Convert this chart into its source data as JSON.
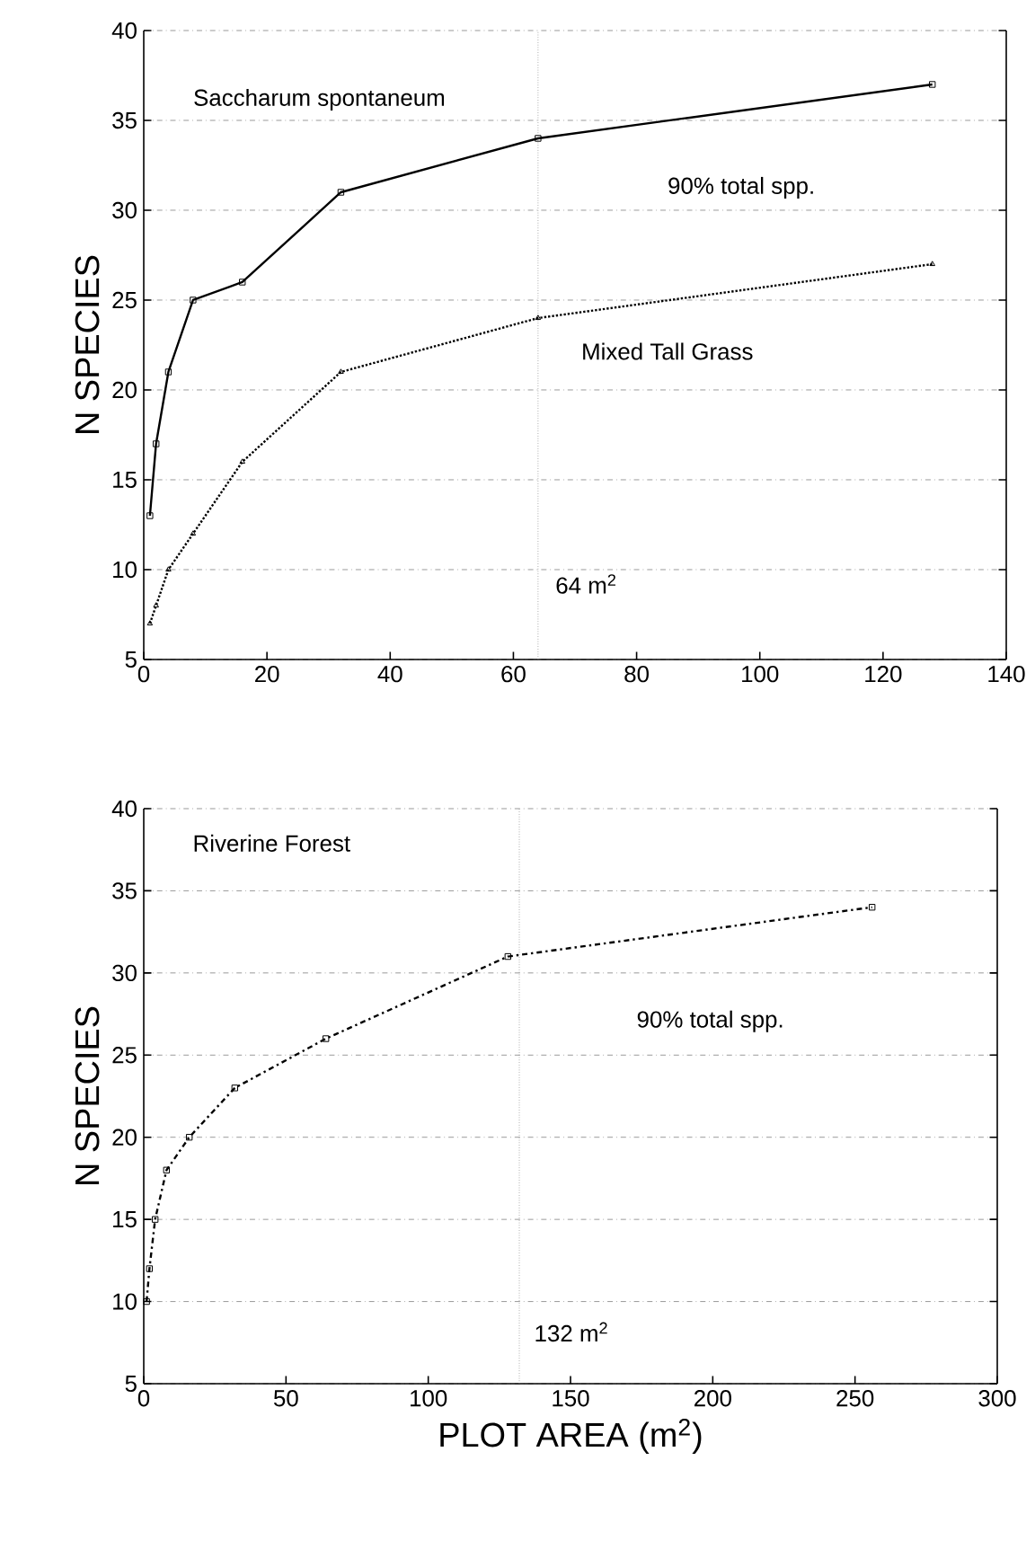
{
  "chart_data": [
    {
      "type": "line",
      "ylabel": "N SPECIES",
      "xlim": [
        0,
        140
      ],
      "xticks": [
        0,
        20,
        40,
        60,
        80,
        100,
        120,
        140
      ],
      "ylim": [
        5,
        40
      ],
      "yticks": [
        5,
        10,
        15,
        20,
        25,
        30,
        35,
        40
      ],
      "grid": "y",
      "series": [
        {
          "name": "Saccharum spontaneum",
          "color": "#000000",
          "marker": "square",
          "line_style": "solid",
          "x": [
            1,
            2,
            4,
            8,
            16,
            32,
            64,
            128
          ],
          "values": [
            13,
            17,
            21,
            25,
            26,
            31,
            34,
            37
          ]
        },
        {
          "name": "Mixed Tall Grass",
          "color": "#000000",
          "marker": "triangle",
          "line_style": "dotted",
          "x": [
            1,
            2,
            4,
            8,
            16,
            32,
            64,
            128
          ],
          "values": [
            7,
            8,
            10,
            12,
            16,
            21,
            24,
            27
          ]
        }
      ],
      "ref_lines": [
        {
          "axis": "x",
          "value": 64,
          "label": "64 m$^{2}$",
          "line_style": "dotted"
        }
      ],
      "annotations": [
        "90% total spp."
      ]
    },
    {
      "type": "line",
      "xlabel": "PLOT AREA (m$^{2}$)",
      "ylabel": "N SPECIES",
      "xlim": [
        0,
        300
      ],
      "xticks": [
        0,
        50,
        100,
        150,
        200,
        250,
        300
      ],
      "ylim": [
        5,
        40
      ],
      "yticks": [
        5,
        10,
        15,
        20,
        25,
        30,
        35,
        40
      ],
      "grid": "y",
      "series": [
        {
          "name": "Riverine Forest",
          "color": "#000000",
          "marker": "square",
          "line_style": "dashdot",
          "x": [
            1,
            2,
            4,
            8,
            16,
            32,
            64,
            128,
            256
          ],
          "values": [
            10,
            12,
            15,
            18,
            20,
            23,
            26,
            31,
            34
          ]
        }
      ],
      "ref_lines": [
        {
          "axis": "x",
          "value": 132,
          "label": "132 m$^{2}$",
          "line_style": "dotted"
        }
      ],
      "annotations": [
        "90% total spp."
      ]
    }
  ]
}
